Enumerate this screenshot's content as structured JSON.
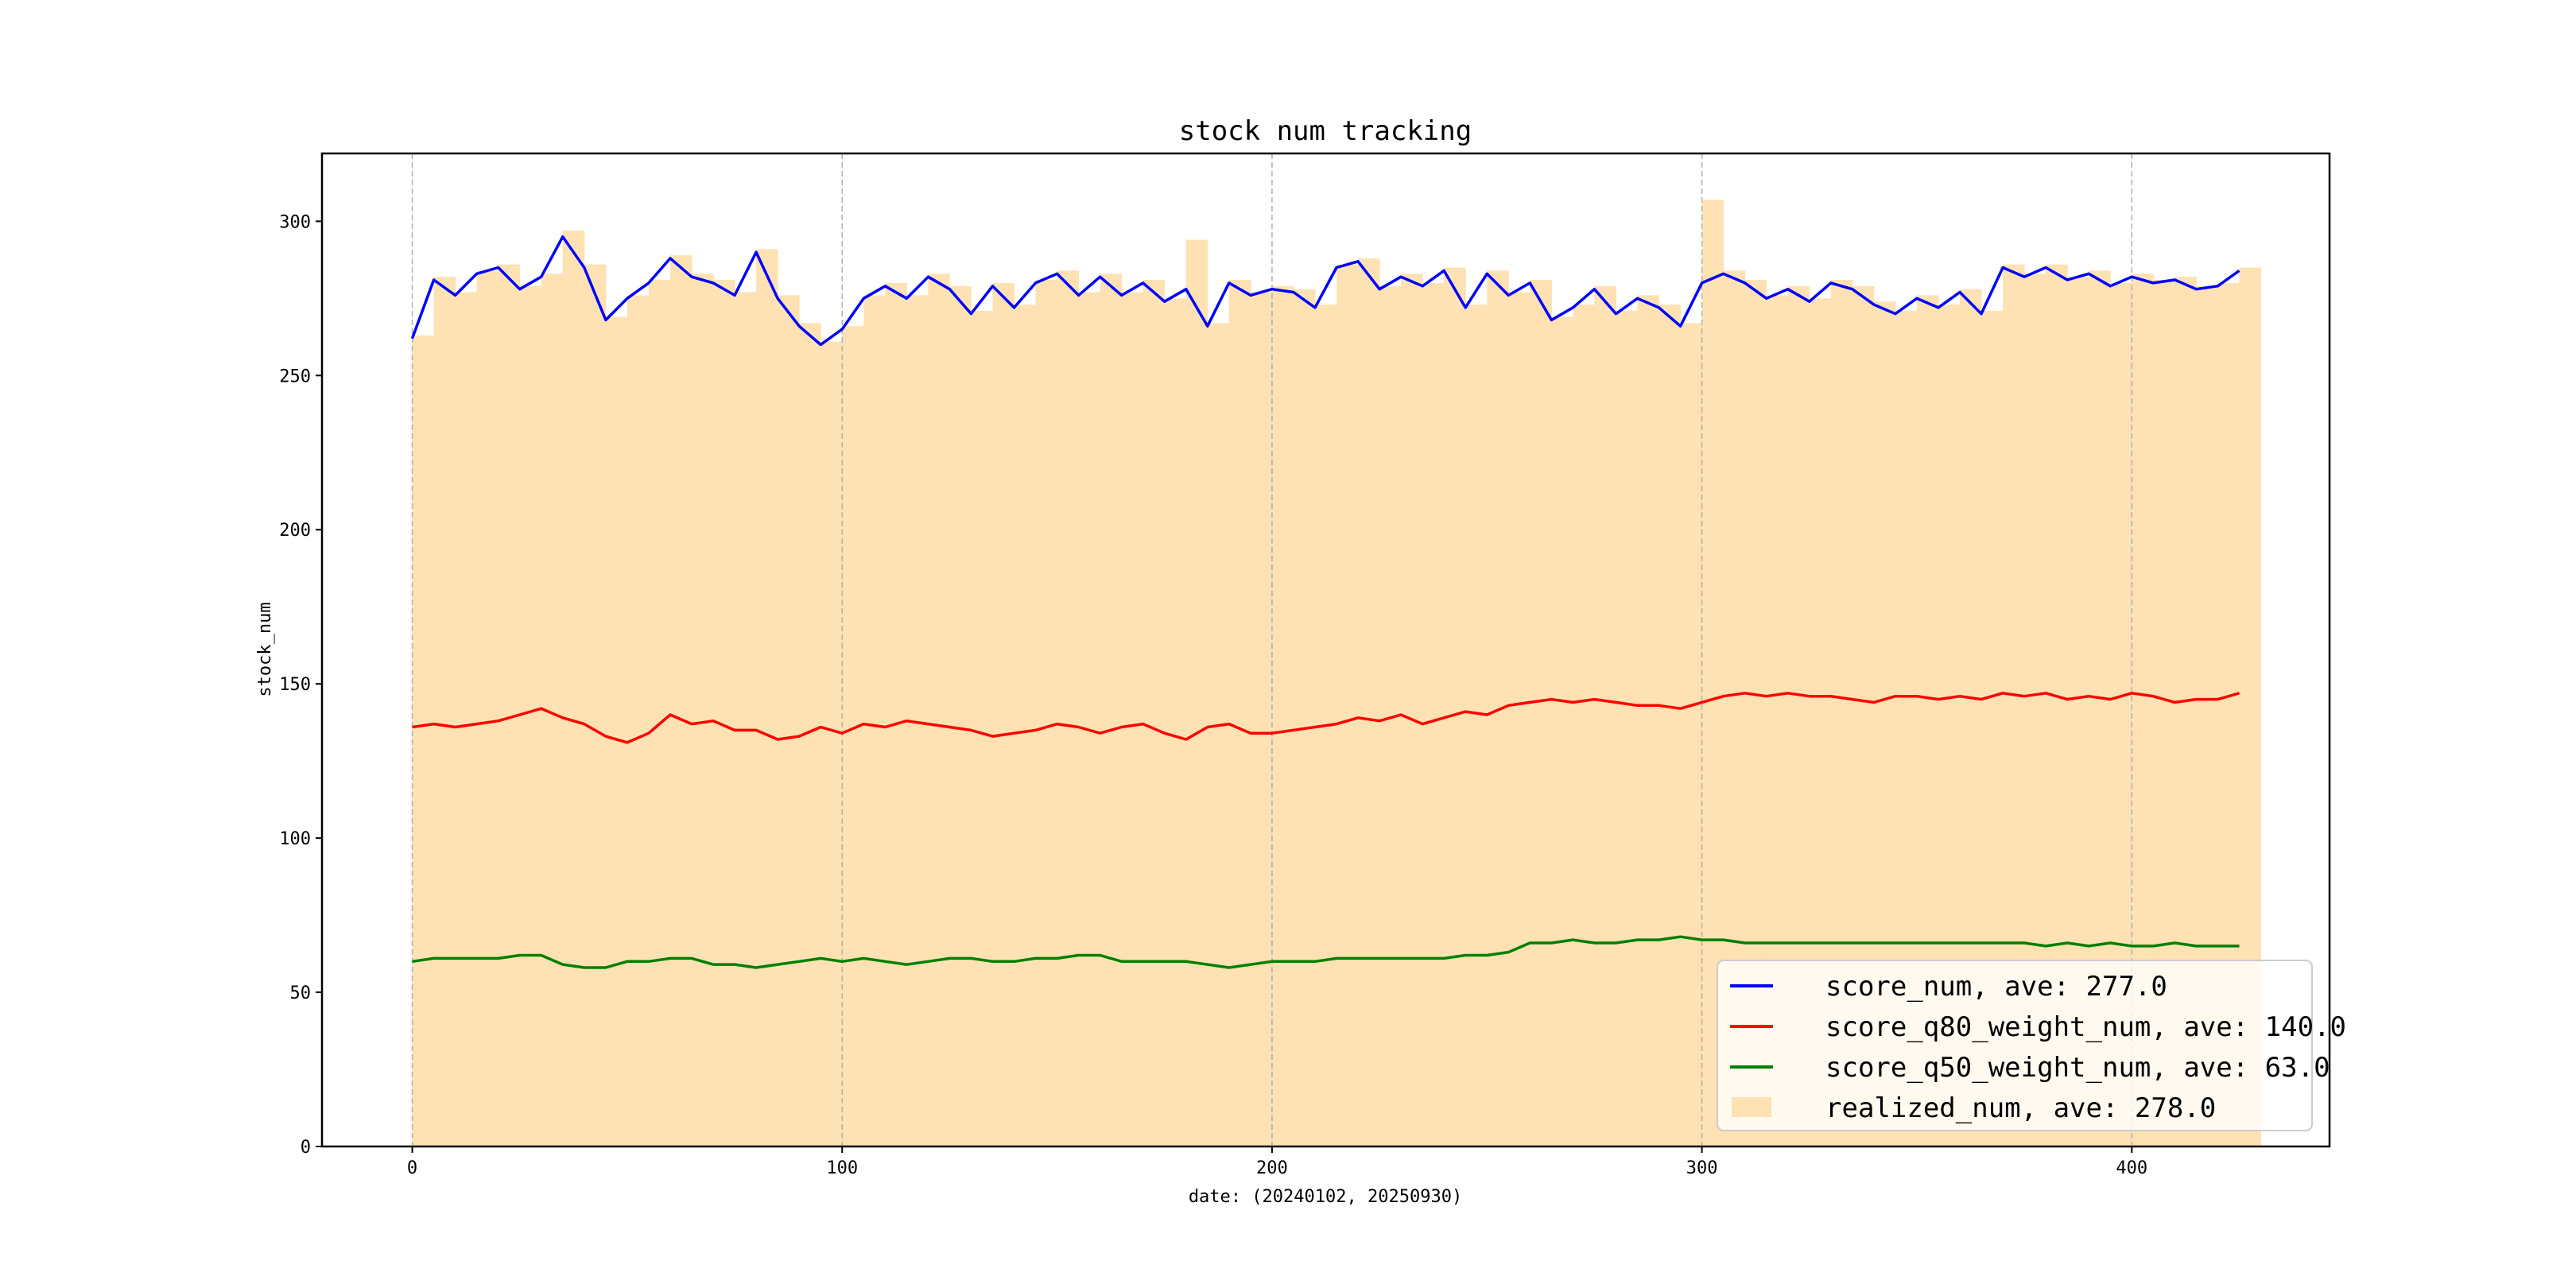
{
  "chart_data": {
    "type": "line",
    "title": "stock num tracking",
    "xlabel": "date: (20240102, 20250930)",
    "ylabel": "stock_num",
    "xlim": [
      -21,
      446
    ],
    "ylim": [
      0,
      322
    ],
    "xticks": [
      "0",
      "100",
      "200",
      "300",
      "400"
    ],
    "yticks": [
      "0",
      "50",
      "100",
      "150",
      "200",
      "250",
      "300"
    ],
    "grid": "vertical dashed at x ticks",
    "legend_position": "lower-right",
    "x_step": 5,
    "x": [
      0,
      5,
      10,
      15,
      20,
      25,
      30,
      35,
      40,
      45,
      50,
      55,
      60,
      65,
      70,
      75,
      80,
      85,
      90,
      95,
      100,
      105,
      110,
      115,
      120,
      125,
      130,
      135,
      140,
      145,
      150,
      155,
      160,
      165,
      170,
      175,
      180,
      185,
      190,
      195,
      200,
      205,
      210,
      215,
      220,
      225,
      230,
      235,
      240,
      245,
      250,
      255,
      260,
      265,
      270,
      275,
      280,
      285,
      290,
      295,
      300,
      305,
      310,
      315,
      320,
      325,
      330,
      335,
      340,
      345,
      350,
      355,
      360,
      365,
      370,
      375,
      380,
      385,
      390,
      395,
      400,
      405,
      410,
      415,
      420,
      425
    ],
    "series": [
      {
        "name": "score_num",
        "legend": "score_num, ave: 277.0",
        "kind": "line",
        "color": "#0000ff",
        "values": [
          262,
          281,
          276,
          283,
          285,
          278,
          282,
          295,
          285,
          268,
          275,
          280,
          288,
          282,
          280,
          276,
          290,
          275,
          266,
          260,
          265,
          275,
          279,
          275,
          282,
          278,
          270,
          279,
          272,
          280,
          283,
          276,
          282,
          276,
          280,
          274,
          278,
          266,
          280,
          276,
          278,
          277,
          272,
          285,
          287,
          278,
          282,
          279,
          284,
          272,
          283,
          276,
          280,
          268,
          272,
          278,
          270,
          275,
          272,
          266,
          280,
          283,
          280,
          275,
          278,
          274,
          280,
          278,
          273,
          270,
          275,
          272,
          277,
          270,
          285,
          282,
          285,
          281,
          283,
          279,
          282,
          280,
          281,
          278,
          279,
          284
        ]
      },
      {
        "name": "score_q80_weight_num",
        "legend": "score_q80_weight_num, ave: 140.0",
        "kind": "line",
        "color": "#ff0000",
        "values": [
          136,
          137,
          136,
          137,
          138,
          140,
          142,
          139,
          137,
          133,
          131,
          134,
          140,
          137,
          138,
          135,
          135,
          132,
          133,
          136,
          134,
          137,
          136,
          138,
          137,
          136,
          135,
          133,
          134,
          135,
          137,
          136,
          134,
          136,
          137,
          134,
          132,
          136,
          137,
          134,
          134,
          135,
          136,
          137,
          139,
          138,
          140,
          137,
          139,
          141,
          140,
          143,
          144,
          145,
          144,
          145,
          144,
          143,
          143,
          142,
          144,
          146,
          147,
          146,
          147,
          146,
          146,
          145,
          144,
          146,
          146,
          145,
          146,
          145,
          147,
          146,
          147,
          145,
          146,
          145,
          147,
          146,
          144,
          145,
          145,
          147
        ]
      },
      {
        "name": "score_q50_weight_num",
        "legend": "score_q50_weight_num, ave: 63.0",
        "kind": "line",
        "color": "#008000",
        "values": [
          60,
          61,
          61,
          61,
          61,
          62,
          62,
          59,
          58,
          58,
          60,
          60,
          61,
          61,
          59,
          59,
          58,
          59,
          60,
          61,
          60,
          61,
          60,
          59,
          60,
          61,
          61,
          60,
          60,
          61,
          61,
          62,
          62,
          60,
          60,
          60,
          60,
          59,
          58,
          59,
          60,
          60,
          60,
          61,
          61,
          61,
          61,
          61,
          61,
          62,
          62,
          63,
          66,
          66,
          67,
          66,
          66,
          67,
          67,
          68,
          67,
          67,
          66,
          66,
          66,
          66,
          66,
          66,
          66,
          66,
          66,
          66,
          66,
          66,
          66,
          66,
          65,
          66,
          65,
          66,
          65,
          65,
          66,
          65,
          65,
          65
        ]
      },
      {
        "name": "realized_num",
        "legend": "realized_num, ave: 278.0",
        "kind": "bar",
        "color": "#fee2b3",
        "values": [
          263,
          282,
          277,
          284,
          286,
          279,
          283,
          297,
          286,
          269,
          276,
          281,
          289,
          283,
          281,
          277,
          291,
          276,
          267,
          261,
          266,
          276,
          280,
          276,
          283,
          279,
          271,
          280,
          273,
          281,
          284,
          277,
          283,
          277,
          281,
          275,
          294,
          267,
          281,
          277,
          279,
          278,
          273,
          286,
          288,
          279,
          283,
          280,
          285,
          273,
          284,
          277,
          281,
          269,
          273,
          279,
          271,
          276,
          273,
          267,
          307,
          284,
          281,
          276,
          279,
          275,
          281,
          279,
          274,
          271,
          276,
          273,
          278,
          271,
          286,
          283,
          286,
          282,
          284,
          280,
          283,
          281,
          282,
          279,
          280,
          285
        ]
      }
    ]
  }
}
